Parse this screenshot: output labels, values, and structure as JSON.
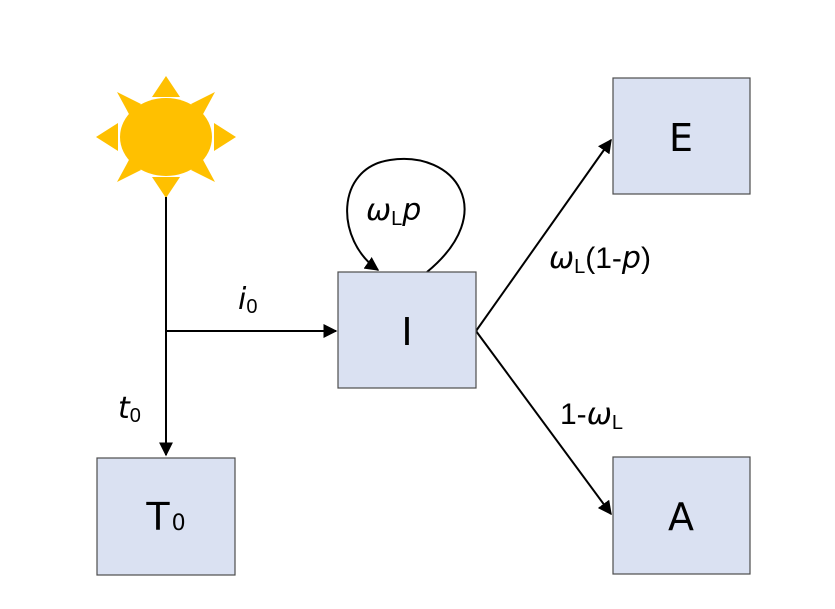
{
  "nodes": {
    "T0": {
      "main": "T",
      "sub": "0"
    },
    "I": {
      "main": "I"
    },
    "E": {
      "main": "E"
    },
    "A": {
      "main": "A"
    }
  },
  "edges": {
    "sun_to_T0": {
      "var": "t",
      "sub": "0"
    },
    "junction_to_I": {
      "var": "i",
      "sub": "0"
    },
    "I_self_loop": {
      "var": "ω",
      "sub": "L",
      "tail": "p"
    },
    "I_to_E": {
      "var": "ω",
      "sub": "L",
      "open": "(1-",
      "tail": "p",
      "close": ")"
    },
    "I_to_A": {
      "prefix": "1-",
      "var": "ω",
      "sub": "L"
    }
  },
  "colors": {
    "box_fill": "#dae1f2",
    "box_stroke": "#4d4d4d",
    "sun": "#ffc000"
  },
  "icons": {
    "source": "sun-icon"
  }
}
